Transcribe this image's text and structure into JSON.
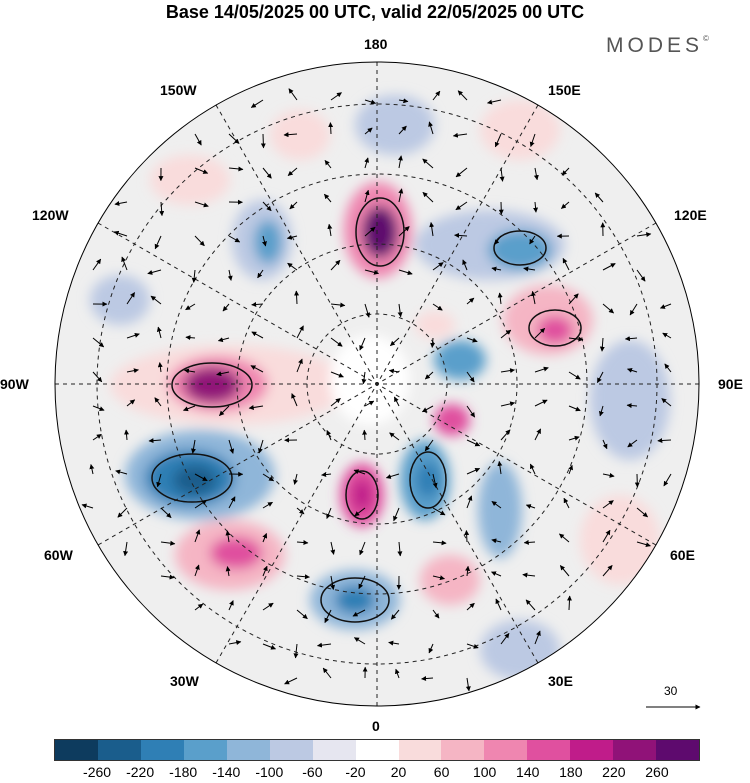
{
  "title": "Base 14/05/2025 00 UTC, valid 22/05/2025 00 UTC",
  "brand": {
    "text": "MODES",
    "mark": "©"
  },
  "longitude_labels": {
    "top": "180",
    "bottom": "0",
    "left": "90W",
    "right": "90E",
    "upper_left": "150W",
    "upper_right": "150E",
    "mid_upper_left": "120W",
    "mid_upper_right": "120E",
    "mid_lower_left": "60W",
    "mid_lower_right": "60E",
    "lower_left": "30W",
    "lower_right": "30E"
  },
  "vector_reference": {
    "value": "30"
  },
  "colorbar": {
    "colors": [
      "#0d3b5e",
      "#1a5d8c",
      "#2f7fb5",
      "#5a9fcb",
      "#8fb6d9",
      "#bcc9e3",
      "#e6e6f0",
      "#ffffff",
      "#f9dcdc",
      "#f5b5c4",
      "#ef86b0",
      "#e0509f",
      "#c01c8a",
      "#901278",
      "#5e0a6e"
    ],
    "tick_labels": [
      "-260",
      "-220",
      "-180",
      "-140",
      "-100",
      "-60",
      "-20",
      "20",
      "60",
      "100",
      "140",
      "180",
      "220",
      "260"
    ]
  }
}
